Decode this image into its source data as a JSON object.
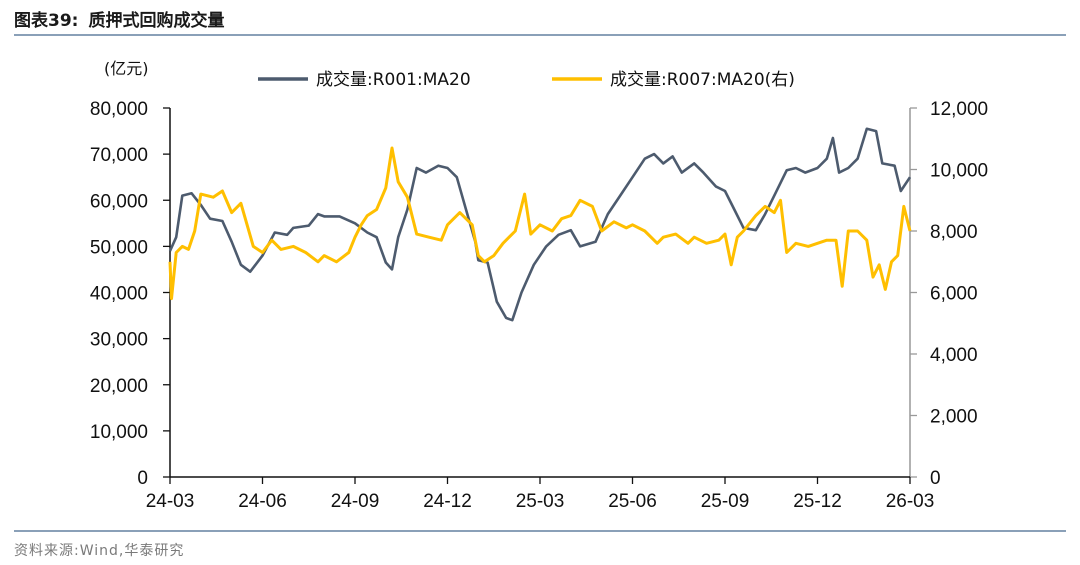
{
  "header": {
    "figure_no": "图表39:",
    "title": "质押式回购成交量"
  },
  "footer": {
    "source": "资料来源:Wind,华泰研究"
  },
  "colors": {
    "series_left": "#4d5b6e",
    "series_right": "#ffbf00",
    "axis": "#111111",
    "rule": "#8aa0b8"
  },
  "chart_data": {
    "type": "line",
    "unit_label": "(亿元)",
    "x_ticks": [
      "24-03",
      "24-06",
      "24-09",
      "24-12",
      "25-03",
      "25-06",
      "25-09",
      "25-12",
      "26-03"
    ],
    "x_range": [
      "24-03",
      "26-03"
    ],
    "y_left": {
      "range": [
        0,
        80000
      ],
      "ticks": [
        "0",
        "10,000",
        "20,000",
        "30,000",
        "40,000",
        "50,000",
        "60,000",
        "70,000",
        "80,000"
      ]
    },
    "y_right": {
      "range": [
        0,
        12000
      ],
      "ticks": [
        "0",
        "2,000",
        "4,000",
        "6,000",
        "8,000",
        "10,000",
        "12,000"
      ]
    },
    "grid": false,
    "legend_position": "top",
    "series": [
      {
        "name": "成交量:R001:MA20",
        "axis": "left",
        "points": [
          [
            "24-03",
            49000
          ],
          [
            "24-03.2",
            52000
          ],
          [
            "24-03.4",
            61000
          ],
          [
            "24-03.7",
            61500
          ],
          [
            "24-04",
            59000
          ],
          [
            "24-04.3",
            56000
          ],
          [
            "24-04.7",
            55500
          ],
          [
            "24-05",
            51000
          ],
          [
            "24-05.3",
            46000
          ],
          [
            "24-05.6",
            44500
          ],
          [
            "24-06",
            48000
          ],
          [
            "24-06.4",
            53000
          ],
          [
            "24-06.8",
            52500
          ],
          [
            "24-07",
            54000
          ],
          [
            "24-07.5",
            54500
          ],
          [
            "24-07.8",
            57000
          ],
          [
            "24-08",
            56500
          ],
          [
            "24-08.5",
            56500
          ],
          [
            "24-09",
            55000
          ],
          [
            "24-09.4",
            53000
          ],
          [
            "24-09.7",
            52000
          ],
          [
            "24-10",
            46500
          ],
          [
            "24-10.2",
            45000
          ],
          [
            "24-10.4",
            52000
          ],
          [
            "24-10.7",
            58000
          ],
          [
            "24-11",
            67000
          ],
          [
            "24-11.3",
            66000
          ],
          [
            "24-11.7",
            67500
          ],
          [
            "24-12",
            67000
          ],
          [
            "24-12.3",
            65000
          ],
          [
            "24-12.6",
            58000
          ],
          [
            "24-12.9",
            51000
          ],
          [
            "25-01",
            47000
          ],
          [
            "25-01.3",
            46500
          ],
          [
            "25-01.6",
            38000
          ],
          [
            "25-01.9",
            34500
          ],
          [
            "25-02.1",
            34000
          ],
          [
            "25-02.4",
            40000
          ],
          [
            "25-02.8",
            46000
          ],
          [
            "25-03.2",
            50000
          ],
          [
            "25-03.6",
            52500
          ],
          [
            "25-04",
            53500
          ],
          [
            "25-04.3",
            50000
          ],
          [
            "25-04.8",
            51000
          ],
          [
            "25-05.2",
            57000
          ],
          [
            "25-05.6",
            61000
          ],
          [
            "25-06",
            65000
          ],
          [
            "25-06.4",
            69000
          ],
          [
            "25-06.7",
            70000
          ],
          [
            "25-07",
            68000
          ],
          [
            "25-07.3",
            69500
          ],
          [
            "25-07.6",
            66000
          ],
          [
            "25-08",
            68000
          ],
          [
            "25-08.3",
            66000
          ],
          [
            "25-08.7",
            63000
          ],
          [
            "25-09",
            62000
          ],
          [
            "25-09.3",
            58000
          ],
          [
            "25-09.6",
            54000
          ],
          [
            "25-10",
            53500
          ],
          [
            "25-10.3",
            57000
          ],
          [
            "25-10.6",
            61000
          ],
          [
            "25-11",
            66500
          ],
          [
            "25-11.3",
            67000
          ],
          [
            "25-11.6",
            66000
          ],
          [
            "25-12",
            67000
          ],
          [
            "25-12.3",
            69000
          ],
          [
            "25-12.5",
            73500
          ],
          [
            "25-12.7",
            66000
          ],
          [
            "26-01",
            67000
          ],
          [
            "26-01.3",
            69000
          ],
          [
            "26-01.6",
            75500
          ],
          [
            "26-01.9",
            75000
          ],
          [
            "26-02.1",
            68000
          ],
          [
            "26-02.5",
            67500
          ],
          [
            "26-02.7",
            62000
          ],
          [
            "26-03",
            65000
          ]
        ]
      },
      {
        "name": "成交量:R007:MA20(右)",
        "axis": "right",
        "points": [
          [
            "24-03",
            7000
          ],
          [
            "24-03.05",
            5800
          ],
          [
            "24-03.2",
            7300
          ],
          [
            "24-03.4",
            7500
          ],
          [
            "24-03.6",
            7400
          ],
          [
            "24-03.8",
            8000
          ],
          [
            "24-04",
            9200
          ],
          [
            "24-04.4",
            9100
          ],
          [
            "24-04.7",
            9300
          ],
          [
            "24-05",
            8600
          ],
          [
            "24-05.3",
            8900
          ],
          [
            "24-05.7",
            7500
          ],
          [
            "24-06",
            7300
          ],
          [
            "24-06.3",
            7700
          ],
          [
            "24-06.6",
            7400
          ],
          [
            "24-07",
            7500
          ],
          [
            "24-07.4",
            7300
          ],
          [
            "24-07.8",
            7000
          ],
          [
            "24-08",
            7200
          ],
          [
            "24-08.4",
            7000
          ],
          [
            "24-08.8",
            7300
          ],
          [
            "24-09",
            7800
          ],
          [
            "24-09.2",
            8200
          ],
          [
            "24-09.4",
            8500
          ],
          [
            "24-09.7",
            8700
          ],
          [
            "24-10",
            9400
          ],
          [
            "24-10.2",
            10700
          ],
          [
            "24-10.4",
            9600
          ],
          [
            "24-10.7",
            9100
          ],
          [
            "24-11",
            7900
          ],
          [
            "24-11.4",
            7800
          ],
          [
            "24-11.8",
            7700
          ],
          [
            "24-12",
            8200
          ],
          [
            "24-12.4",
            8600
          ],
          [
            "24-12.8",
            8200
          ],
          [
            "25-01",
            7200
          ],
          [
            "25-01.2",
            7000
          ],
          [
            "25-01.5",
            7200
          ],
          [
            "25-01.8",
            7600
          ],
          [
            "25-02.2",
            8000
          ],
          [
            "25-02.5",
            9200
          ],
          [
            "25-02.7",
            7900
          ],
          [
            "25-03",
            8200
          ],
          [
            "25-03.4",
            8000
          ],
          [
            "25-03.7",
            8400
          ],
          [
            "25-04",
            8500
          ],
          [
            "25-04.3",
            9000
          ],
          [
            "25-04.7",
            8800
          ],
          [
            "25-05",
            8000
          ],
          [
            "25-05.4",
            8300
          ],
          [
            "25-05.8",
            8100
          ],
          [
            "25-06",
            8200
          ],
          [
            "25-06.4",
            8000
          ],
          [
            "25-06.8",
            7600
          ],
          [
            "25-07",
            7800
          ],
          [
            "25-07.4",
            7900
          ],
          [
            "25-07.8",
            7600
          ],
          [
            "25-08",
            7800
          ],
          [
            "25-08.4",
            7600
          ],
          [
            "25-08.8",
            7700
          ],
          [
            "25-09",
            7900
          ],
          [
            "25-09.2",
            6900
          ],
          [
            "25-09.4",
            7800
          ],
          [
            "25-09.6",
            8000
          ],
          [
            "25-10",
            8500
          ],
          [
            "25-10.3",
            8800
          ],
          [
            "25-10.6",
            8600
          ],
          [
            "25-10.8",
            9000
          ],
          [
            "25-11",
            7300
          ],
          [
            "25-11.3",
            7600
          ],
          [
            "25-11.7",
            7500
          ],
          [
            "25-12",
            7600
          ],
          [
            "25-12.3",
            7700
          ],
          [
            "25-12.6",
            7700
          ],
          [
            "25-12.8",
            6200
          ],
          [
            "26-01",
            8000
          ],
          [
            "26-01.3",
            8000
          ],
          [
            "26-01.6",
            7700
          ],
          [
            "26-01.8",
            6500
          ],
          [
            "26-02",
            6900
          ],
          [
            "26-02.2",
            6100
          ],
          [
            "26-02.4",
            7000
          ],
          [
            "26-02.6",
            7200
          ],
          [
            "26-02.8",
            8800
          ],
          [
            "26-03",
            8000
          ]
        ]
      }
    ]
  }
}
